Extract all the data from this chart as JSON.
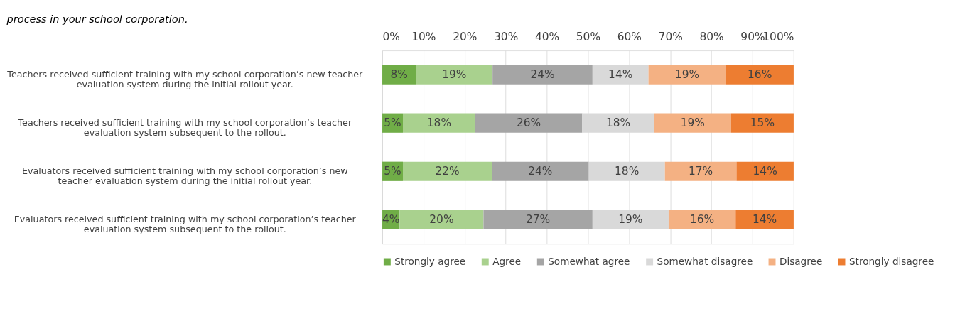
{
  "chart_data": {
    "type": "bar",
    "orientation": "horizontal",
    "stacked": true,
    "title": "process in your school corporation.",
    "categories": [
      "Teachers received sufficient training with my school corporation’s new teacher evaluation system during the initial rollout year.",
      "Teachers received sufficient training with my school corporation’s teacher evaluation system subsequent to the rollout.",
      "Evaluators received sufficient training with my school corporation’s new teacher evaluation system during the initial rollout year.",
      "Evaluators received sufficient training with my school corporation’s teacher evaluation system subsequent to the rollout."
    ],
    "series": [
      {
        "name": "Strongly agree",
        "color": "#70ad47",
        "values": [
          8.2,
          5.0,
          5.0,
          4.2
        ],
        "value_labels": [
          "8%",
          "5%",
          "5%",
          "4%"
        ]
      },
      {
        "name": "Agree",
        "color": "#a9d18e",
        "values": [
          18.6,
          17.6,
          21.6,
          20.4
        ],
        "value_labels": [
          "19%",
          "18%",
          "22%",
          "20%"
        ]
      },
      {
        "name": "Somewhat agree",
        "color": "#a5a5a5",
        "values": [
          24.3,
          26.0,
          23.6,
          26.5
        ],
        "value_labels": [
          "24%",
          "26%",
          "24%",
          "27%"
        ]
      },
      {
        "name": "Somewhat disagree",
        "color": "#d9d9d9",
        "values": [
          13.6,
          17.5,
          18.5,
          18.5
        ],
        "value_labels": [
          "14%",
          "18%",
          "18%",
          "19%"
        ]
      },
      {
        "name": "Disagree",
        "color": "#f4b183",
        "values": [
          18.8,
          18.7,
          17.4,
          16.3
        ],
        "value_labels": [
          "19%",
          "19%",
          "17%",
          "16%"
        ]
      },
      {
        "name": "Strongly disagree",
        "color": "#ed7d31",
        "values": [
          16.5,
          15.2,
          13.9,
          14.1
        ],
        "value_labels": [
          "16%",
          "15%",
          "14%",
          "14%"
        ]
      }
    ],
    "xlim": [
      0,
      100
    ],
    "xticks": [
      {
        "value": 0,
        "label": "0%"
      },
      {
        "value": 10,
        "label": "10%"
      },
      {
        "value": 20,
        "label": "20%"
      },
      {
        "value": 30,
        "label": "30%"
      },
      {
        "value": 40,
        "label": "40%"
      },
      {
        "value": 50,
        "label": "50%"
      },
      {
        "value": 60,
        "label": "60%"
      },
      {
        "value": 70,
        "label": "70%"
      },
      {
        "value": 80,
        "label": "80%"
      },
      {
        "value": 90,
        "label": "90%"
      },
      {
        "value": 100,
        "label": "100%"
      }
    ],
    "grid": "x",
    "legend": "bottom"
  }
}
